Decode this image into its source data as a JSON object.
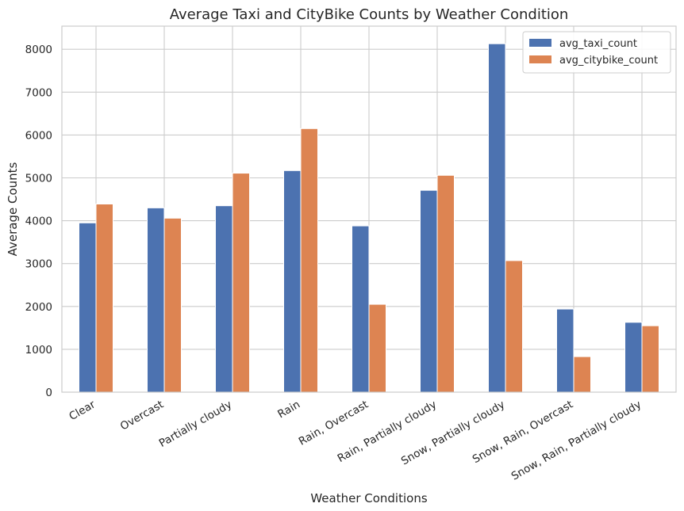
{
  "chart_data": {
    "type": "bar",
    "title": "Average Taxi and CityBike Counts by Weather Condition",
    "xlabel": "Weather Conditions",
    "ylabel": "Average Counts",
    "categories": [
      "Clear",
      "Overcast",
      "Partially cloudy",
      "Rain",
      "Rain, Overcast",
      "Rain, Partially cloudy",
      "Snow, Partially cloudy",
      "Snow, Rain, Overcast",
      "Snow, Rain, Partially cloudy"
    ],
    "series": [
      {
        "name": "avg_taxi_count",
        "color": "#4c72b0",
        "values": [
          3950,
          4300,
          4350,
          5170,
          3880,
          4710,
          8130,
          1940,
          1630
        ]
      },
      {
        "name": "avg_citybike_count",
        "color": "#dd8452",
        "values": [
          4390,
          4060,
          5110,
          6150,
          2050,
          5060,
          3070,
          830,
          1550
        ]
      }
    ],
    "ylim": [
      0,
      8540
    ],
    "yticks": [
      0,
      1000,
      2000,
      3000,
      4000,
      5000,
      6000,
      7000,
      8000
    ],
    "grid": true,
    "legend_position": "top-right",
    "x_tick_rotation": "30 degrees"
  }
}
